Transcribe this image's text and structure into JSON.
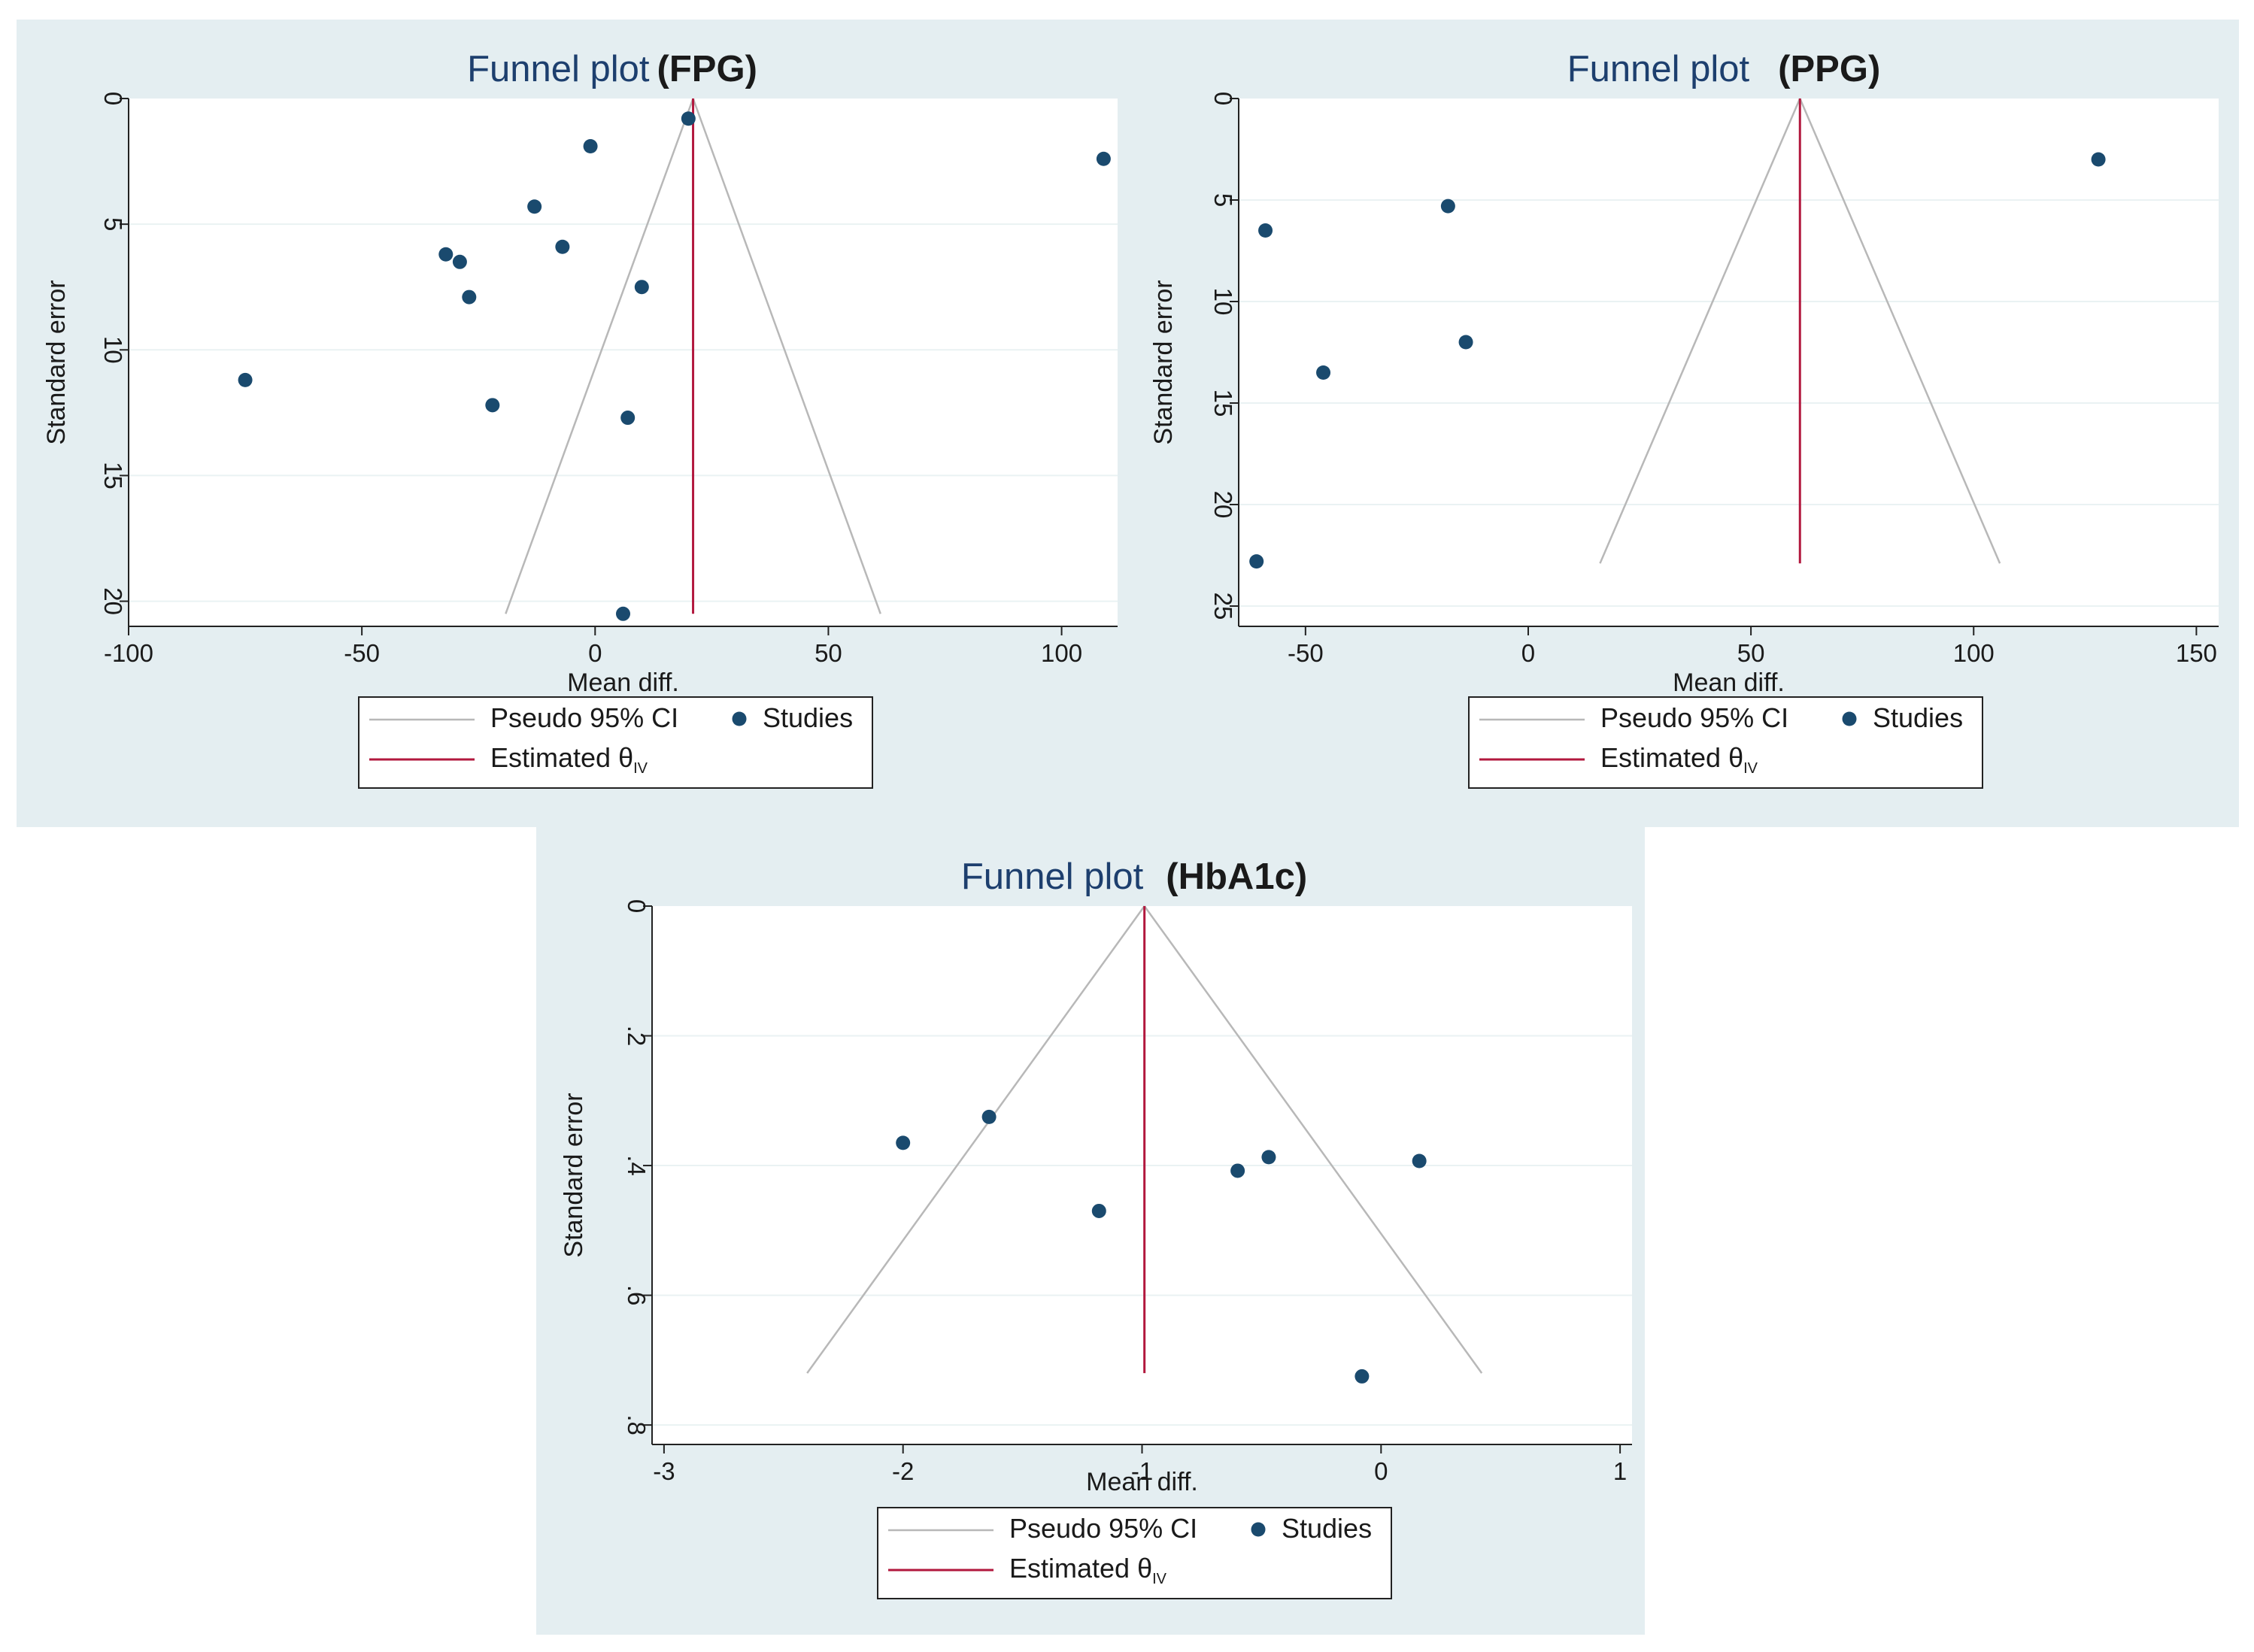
{
  "colors": {
    "panel_background": "#e4eef1",
    "plot_background": "#ffffff",
    "gridline": "#eaf2f3",
    "ci_line": "#b8b8b8",
    "estimate_line": "#b2183e",
    "study_marker": "#1a4a6e",
    "title_main": "#1d3f6e",
    "text": "#1a1a1a"
  },
  "chart_data": [
    {
      "type": "scatter",
      "chart_type_detail": "funnel plot",
      "title": "Funnel plot",
      "title_suffix": "(FPG)",
      "xlabel": "Mean diff.",
      "ylabel": "Standard error",
      "xlim": [
        -100,
        112
      ],
      "ylim": [
        0,
        21
      ],
      "y_inverted": true,
      "xticks": [
        -100,
        -50,
        0,
        50,
        100
      ],
      "xtick_labels": [
        "-100",
        "-50",
        "0",
        "50",
        "100"
      ],
      "yticks": [
        0,
        5,
        10,
        15,
        20
      ],
      "ytick_labels": [
        "0",
        "5",
        "10",
        "15",
        "20"
      ],
      "grid": true,
      "estimate": 21,
      "funnel_max_se": 20.5,
      "ci_multiplier": 1.96,
      "points": [
        {
          "x": 20,
          "y": 0.8
        },
        {
          "x": -1,
          "y": 1.9
        },
        {
          "x": 109,
          "y": 2.4
        },
        {
          "x": -13,
          "y": 4.3
        },
        {
          "x": -32,
          "y": 6.2
        },
        {
          "x": -29,
          "y": 6.5
        },
        {
          "x": -7,
          "y": 5.9
        },
        {
          "x": -27,
          "y": 7.9
        },
        {
          "x": 10,
          "y": 7.5
        },
        {
          "x": -75,
          "y": 11.2
        },
        {
          "x": -22,
          "y": 12.2
        },
        {
          "x": 7,
          "y": 12.7
        },
        {
          "x": 6,
          "y": 20.5
        }
      ],
      "legend": {
        "ci_label": "Pseudo 95% CI",
        "studies_label": "Studies",
        "estimate_label": "Estimated θ",
        "estimate_subscript": "IV",
        "position": "bottom-center"
      }
    },
    {
      "type": "scatter",
      "chart_type_detail": "funnel plot",
      "title": "Funnel plot",
      "title_suffix": "(PPG)",
      "xlabel": "Mean diff.",
      "ylabel": "Standard error",
      "xlim": [
        -65,
        155
      ],
      "ylim": [
        0,
        26
      ],
      "y_inverted": true,
      "xticks": [
        -50,
        0,
        50,
        100,
        150
      ],
      "xtick_labels": [
        "-50",
        "0",
        "50",
        "100",
        "150"
      ],
      "yticks": [
        0,
        5,
        10,
        15,
        20,
        25
      ],
      "ytick_labels": [
        "0",
        "5",
        "10",
        "15",
        "20",
        "25"
      ],
      "grid": true,
      "estimate": 61,
      "funnel_max_se": 22.9,
      "ci_multiplier": 1.96,
      "points": [
        {
          "x": 128,
          "y": 3.0
        },
        {
          "x": -18,
          "y": 5.3
        },
        {
          "x": -59,
          "y": 6.5
        },
        {
          "x": -14,
          "y": 12.0
        },
        {
          "x": -46,
          "y": 13.5
        },
        {
          "x": -61,
          "y": 22.8
        }
      ],
      "legend": {
        "ci_label": "Pseudo 95% CI",
        "studies_label": "Studies",
        "estimate_label": "Estimated θ",
        "estimate_subscript": "IV",
        "position": "bottom-center"
      }
    },
    {
      "type": "scatter",
      "chart_type_detail": "funnel plot",
      "title": "Funnel plot",
      "title_suffix": "(HbA1c)",
      "xlabel": "Mean diff.",
      "ylabel": "Standard error",
      "xlim": [
        -3.05,
        1.05
      ],
      "ylim": [
        0,
        0.83
      ],
      "y_inverted": true,
      "xticks": [
        -3,
        -2,
        -1,
        0,
        1
      ],
      "xtick_labels": [
        "-3",
        "-2",
        "-1",
        "0",
        "1"
      ],
      "yticks": [
        0,
        0.2,
        0.4,
        0.6,
        0.8
      ],
      "ytick_labels": [
        "0",
        ".2",
        ".4",
        ".6",
        ".8"
      ],
      "grid": true,
      "estimate": -0.99,
      "funnel_max_se": 0.72,
      "ci_multiplier": 1.96,
      "points": [
        {
          "x": -1.64,
          "y": 0.325
        },
        {
          "x": -2.0,
          "y": 0.365
        },
        {
          "x": -0.47,
          "y": 0.387
        },
        {
          "x": -0.6,
          "y": 0.408
        },
        {
          "x": 0.16,
          "y": 0.393
        },
        {
          "x": -1.18,
          "y": 0.47
        },
        {
          "x": -0.08,
          "y": 0.725
        }
      ],
      "legend": {
        "ci_label": "Pseudo 95% CI",
        "studies_label": "Studies",
        "estimate_label": "Estimated θ",
        "estimate_subscript": "IV",
        "position": "bottom-center"
      }
    }
  ]
}
